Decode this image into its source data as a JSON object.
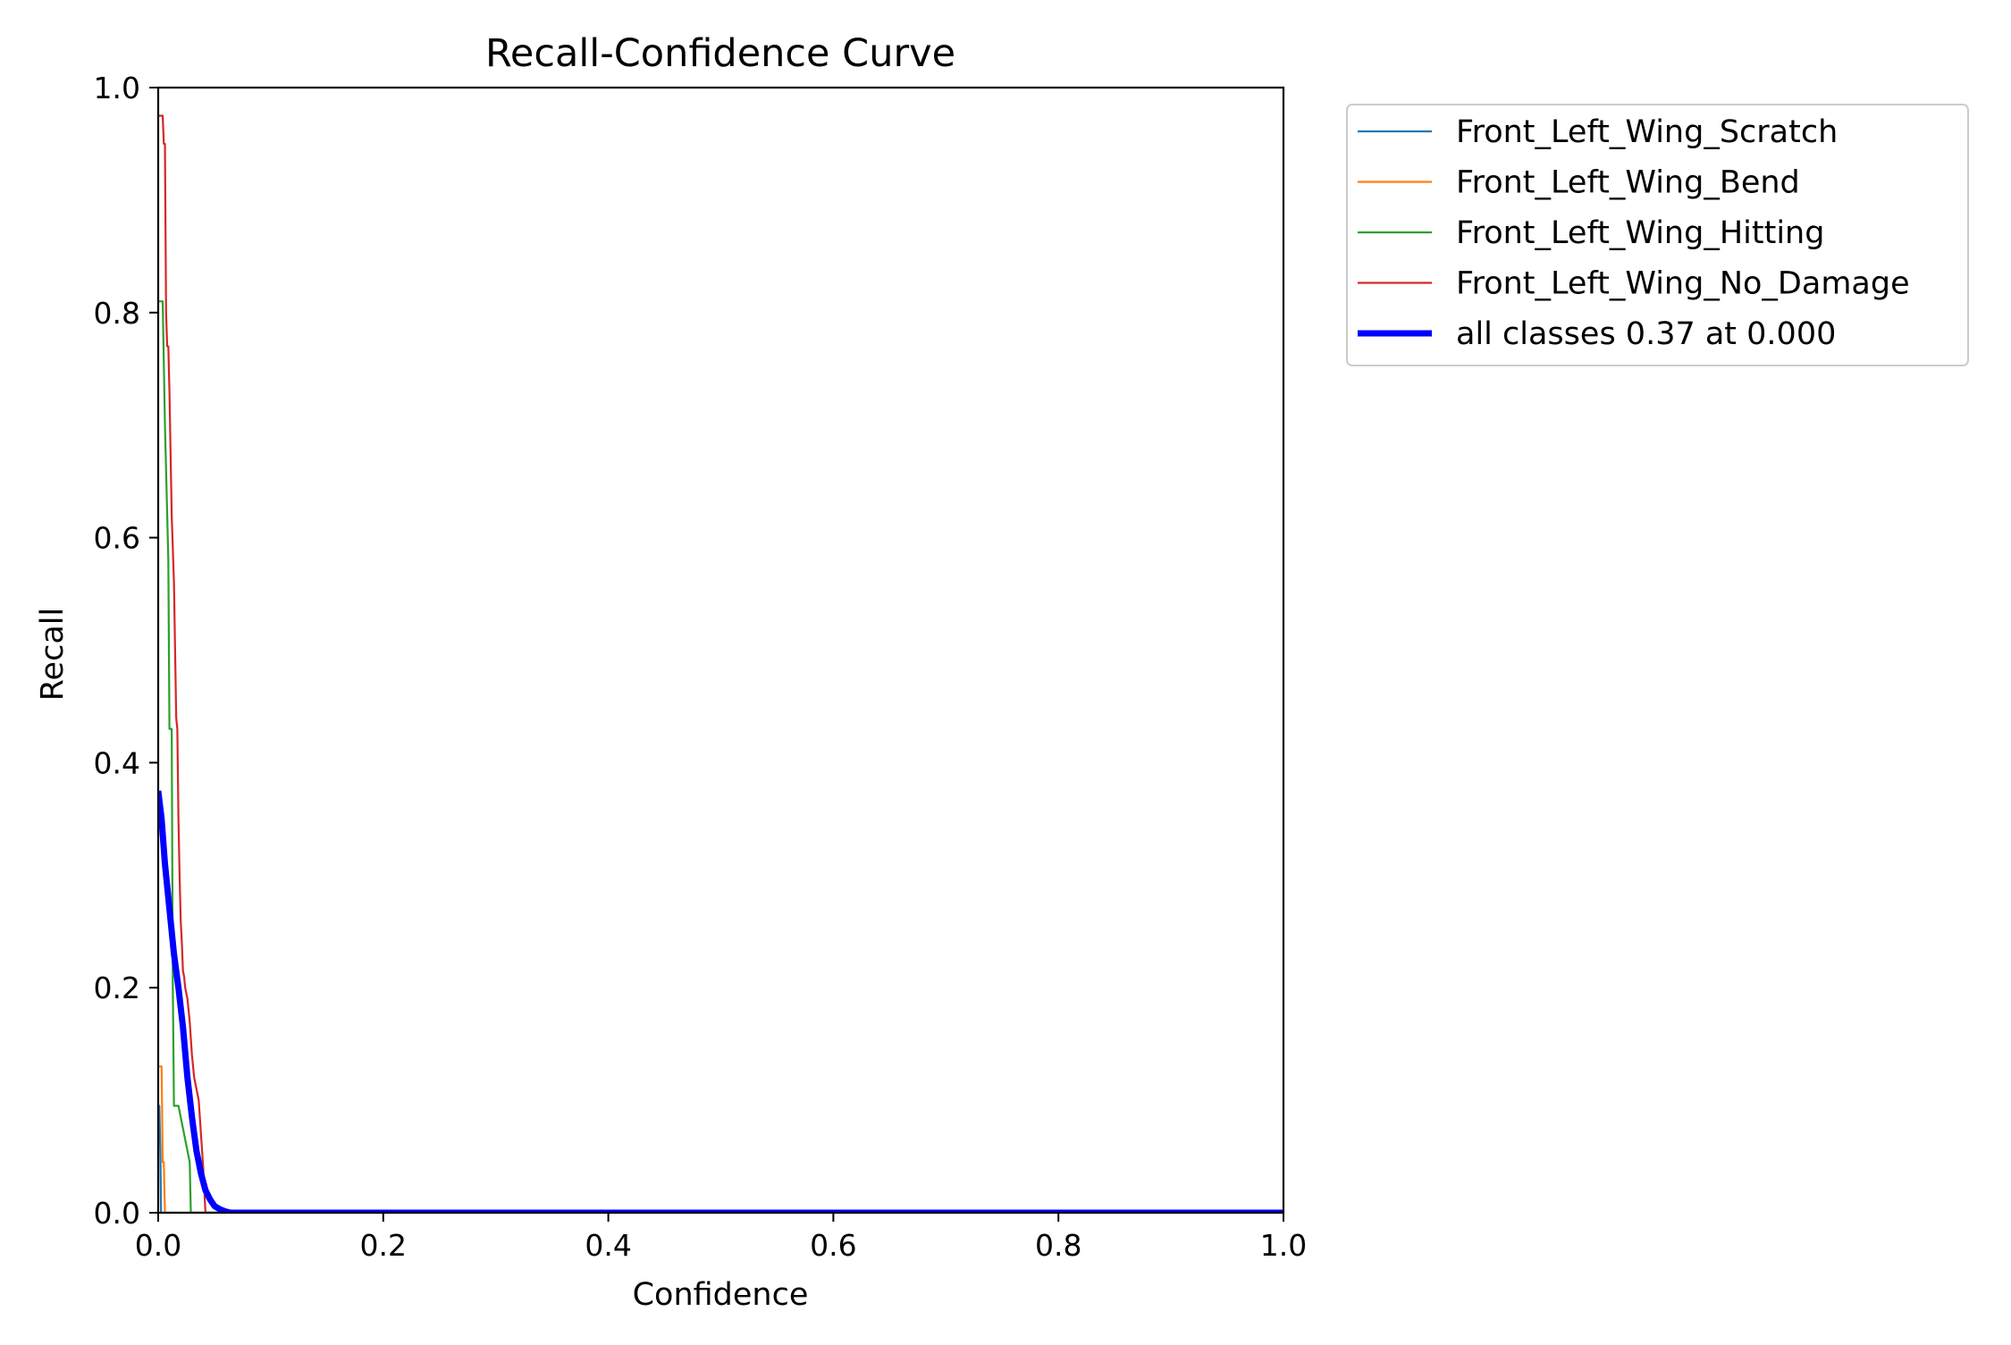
{
  "chart_data": {
    "type": "line",
    "title": "Recall-Confidence Curve",
    "xlabel": "Confidence",
    "ylabel": "Recall",
    "xlim": [
      0,
      1
    ],
    "ylim": [
      0,
      1
    ],
    "xticks": [
      "0.0",
      "0.2",
      "0.4",
      "0.6",
      "0.8",
      "1.0"
    ],
    "yticks": [
      "0.0",
      "0.2",
      "0.4",
      "0.6",
      "0.8",
      "1.0"
    ],
    "grid": false,
    "legend_position": "outside-top-right",
    "series": [
      {
        "name": "Front_Left_Wing_Scratch",
        "color": "#1f77b4",
        "width": "thin",
        "x": [
          0.0,
          0.001,
          0.002,
          0.0025,
          0.003,
          1.0
        ],
        "y": [
          0.095,
          0.095,
          0.05,
          0.0,
          0.0,
          0.0
        ]
      },
      {
        "name": "Front_Left_Wing_Bend",
        "color": "#ff7f0e",
        "width": "thin",
        "x": [
          0.0,
          0.002,
          0.003,
          0.004,
          0.005,
          0.006,
          0.007,
          1.0
        ],
        "y": [
          0.13,
          0.13,
          0.13,
          0.045,
          0.045,
          0.0,
          0.0,
          0.0
        ]
      },
      {
        "name": "Front_Left_Wing_Hitting",
        "color": "#2ca02c",
        "width": "thin",
        "x": [
          0.0,
          0.002,
          0.004,
          0.006,
          0.008,
          0.009,
          0.01,
          0.012,
          0.013,
          0.014,
          0.016,
          0.018,
          0.02,
          0.022,
          0.024,
          0.026,
          0.028,
          0.029,
          0.03,
          1.0
        ],
        "y": [
          0.81,
          0.81,
          0.81,
          0.7,
          0.62,
          0.58,
          0.43,
          0.43,
          0.2,
          0.095,
          0.095,
          0.095,
          0.085,
          0.075,
          0.065,
          0.055,
          0.045,
          0.0,
          0.0,
          0.0
        ]
      },
      {
        "name": "Front_Left_Wing_No_Damage",
        "color": "#d62728",
        "width": "thin",
        "x": [
          0.0,
          0.002,
          0.004,
          0.005,
          0.006,
          0.007,
          0.008,
          0.009,
          0.01,
          0.012,
          0.014,
          0.016,
          0.017,
          0.018,
          0.019,
          0.02,
          0.021,
          0.022,
          0.023,
          0.024,
          0.026,
          0.028,
          0.03,
          0.032,
          0.034,
          0.036,
          0.038,
          0.04,
          0.041,
          0.042,
          0.044,
          0.05,
          1.0
        ],
        "y": [
          0.975,
          0.975,
          0.975,
          0.95,
          0.95,
          0.8,
          0.77,
          0.77,
          0.73,
          0.62,
          0.56,
          0.44,
          0.43,
          0.35,
          0.3,
          0.26,
          0.24,
          0.215,
          0.21,
          0.2,
          0.19,
          0.17,
          0.14,
          0.12,
          0.11,
          0.1,
          0.07,
          0.04,
          0.02,
          0.0,
          0.0,
          0.0,
          0.0
        ]
      },
      {
        "name": "all classes 0.37 at 0.000",
        "color": "#0000ff",
        "width": "thick",
        "x": [
          0.0,
          0.003,
          0.006,
          0.01,
          0.014,
          0.018,
          0.022,
          0.026,
          0.03,
          0.034,
          0.038,
          0.042,
          0.046,
          0.05,
          0.055,
          0.06,
          0.065,
          0.07,
          1.0
        ],
        "y": [
          0.375,
          0.35,
          0.31,
          0.27,
          0.23,
          0.2,
          0.165,
          0.12,
          0.085,
          0.055,
          0.035,
          0.02,
          0.012,
          0.006,
          0.003,
          0.001,
          0.0,
          0.0,
          0.0
        ]
      }
    ]
  }
}
